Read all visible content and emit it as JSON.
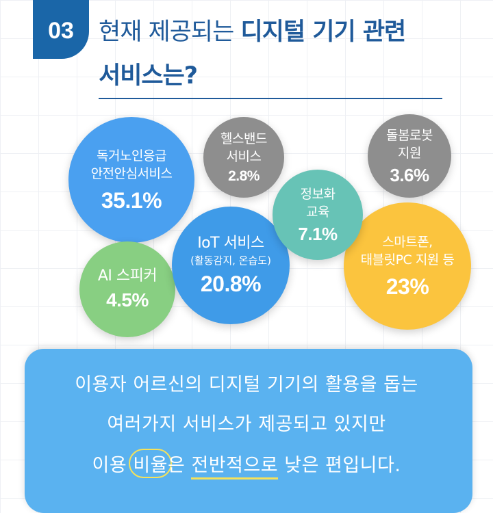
{
  "header": {
    "number": "03",
    "title_line1_regular": "현재 제공되는",
    "title_line1_bold": "디지털 기기 관련",
    "title_line2": "서비스는?"
  },
  "bubbles": [
    {
      "label_lines": [
        "독거노인응급",
        "안전안심서비스"
      ],
      "percent": "35.1%",
      "value": 35.1,
      "color": "#4aa0f0"
    },
    {
      "label_lines": [
        "헬스밴드",
        "서비스"
      ],
      "percent": "2.8%",
      "value": 2.8,
      "color": "#8e8e8e"
    },
    {
      "label_lines": [
        "돌봄로봇",
        "지원"
      ],
      "percent": "3.6%",
      "value": 3.6,
      "color": "#8e8e8e"
    },
    {
      "label_lines": [
        "정보화",
        "교육"
      ],
      "percent": "7.1%",
      "value": 7.1,
      "color": "#67c3b6"
    },
    {
      "label_lines": [
        "스마트폰,",
        "태블릿PC 지원 등"
      ],
      "percent": "23%",
      "value": 23,
      "color": "#fbc43e"
    },
    {
      "label_lines": [
        "IoT 서비스"
      ],
      "sub": "(활동감지, 온습도)",
      "percent": "20.8%",
      "value": 20.8,
      "color": "#3f9be8"
    },
    {
      "label_lines": [
        "AI 스피커"
      ],
      "percent": "4.5%",
      "value": 4.5,
      "color": "#88cf82"
    }
  ],
  "callout": {
    "line1": "이용자 어르신의 디지털 기기의 활용을 돕는",
    "line2": "여러가지 서비스가 제공되고 있지만",
    "line3_a": "이용 ",
    "line3_hl1": "비율",
    "line3_b": "은 ",
    "line3_hl2": "전반적으로",
    "line3_c": " 낮은 편입니다."
  }
}
